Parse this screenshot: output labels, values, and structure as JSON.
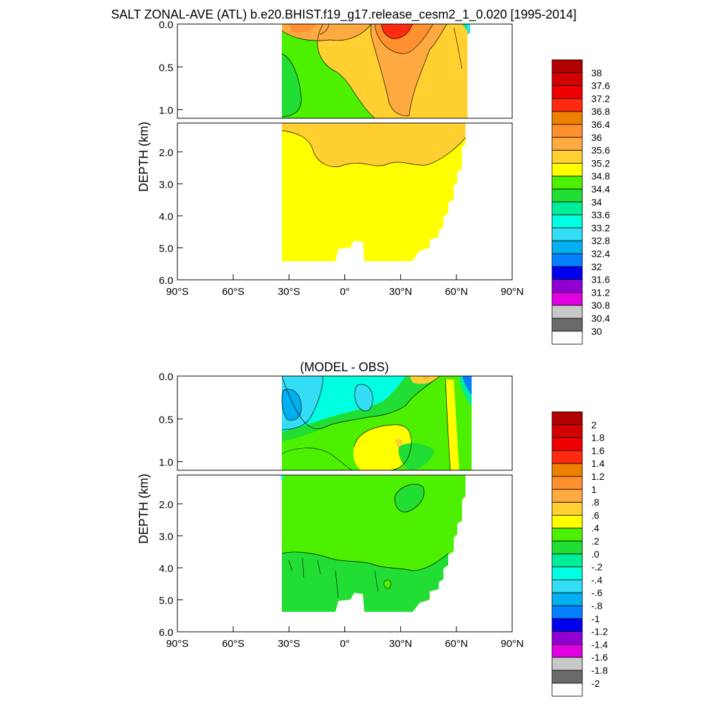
{
  "figure": {
    "title": "SALT ZONAL-AVE (ATL) b.e20.BHIST.f19_g17.release_cesm2_1_0.020 [1995-2014]",
    "subtitle": "(MODEL - OBS)"
  },
  "chart_data": [
    {
      "type": "contour",
      "title": "SALT ZONAL-AVE (ATL) b.e20.BHIST.f19_g17.release_cesm2_1_0.020 [1995-2014]",
      "ylabel": "DEPTH (km)",
      "xlim": [
        -90,
        90
      ],
      "ylim_upper": [
        0,
        1.1
      ],
      "ylim_lower": [
        1.1,
        6.0
      ],
      "x_ticks": [
        "90°S",
        "60°S",
        "30°S",
        "0°",
        "30°N",
        "60°N",
        "90°N"
      ],
      "y_ticks_upper": [
        "0.0",
        "0.5",
        "1.0"
      ],
      "y_ticks_lower": [
        "2.0",
        "3.0",
        "4.0",
        "5.0",
        "6.0"
      ],
      "data_extent_lat": [
        -34,
        65
      ],
      "colorbar": {
        "labels": [
          "38",
          "37.6",
          "37.2",
          "36.8",
          "36.4",
          "36",
          "35.6",
          "35.2",
          "34.8",
          "34.4",
          "34",
          "33.6",
          "33.2",
          "32.8",
          "32.4",
          "32",
          "31.6",
          "31.2",
          "30.8",
          "30.4",
          "30"
        ],
        "colors": [
          "#b00000",
          "#d40000",
          "#ee0000",
          "#ff2a10",
          "#f08000",
          "#ff9030",
          "#ffaa40",
          "#ffd030",
          "#ffff00",
          "#4df000",
          "#22dd33",
          "#00ee99",
          "#00ffe0",
          "#33ddf5",
          "#00b0f0",
          "#0080ff",
          "#0000ee",
          "#9000d0",
          "#e000e0",
          "#c8c8c8",
          "#6a6a6a",
          "#ffffff"
        ]
      }
    },
    {
      "type": "contour",
      "title": "(MODEL - OBS)",
      "ylabel": "DEPTH (km)",
      "xlim": [
        -90,
        90
      ],
      "ylim_upper": [
        0,
        1.1
      ],
      "ylim_lower": [
        1.1,
        6.0
      ],
      "x_ticks": [
        "90°S",
        "60°S",
        "30°S",
        "0°",
        "30°N",
        "60°N",
        "90°N"
      ],
      "y_ticks_upper": [
        "0.0",
        "0.5",
        "1.0"
      ],
      "y_ticks_lower": [
        "2.0",
        "3.0",
        "4.0",
        "5.0",
        "6.0"
      ],
      "data_extent_lat": [
        -34,
        65
      ],
      "colorbar": {
        "labels": [
          "2",
          "1.8",
          "1.6",
          "1.4",
          "1.2",
          "1",
          ".8",
          ".6",
          ".4",
          ".2",
          ".0",
          "-.2",
          "-.4",
          "-.6",
          "-.8",
          "-1",
          "-1.2",
          "-1.4",
          "-1.6",
          "-1.8",
          "-2"
        ],
        "colors": [
          "#b00000",
          "#d40000",
          "#ee0000",
          "#ff2a10",
          "#f08000",
          "#ff9030",
          "#ffaa40",
          "#ffd030",
          "#ffff00",
          "#4df000",
          "#22dd33",
          "#00ee99",
          "#00ffe0",
          "#33ddf5",
          "#00b0f0",
          "#0080ff",
          "#0000ee",
          "#9000d0",
          "#e000e0",
          "#c8c8c8",
          "#6a6a6a",
          "#ffffff"
        ]
      }
    }
  ]
}
